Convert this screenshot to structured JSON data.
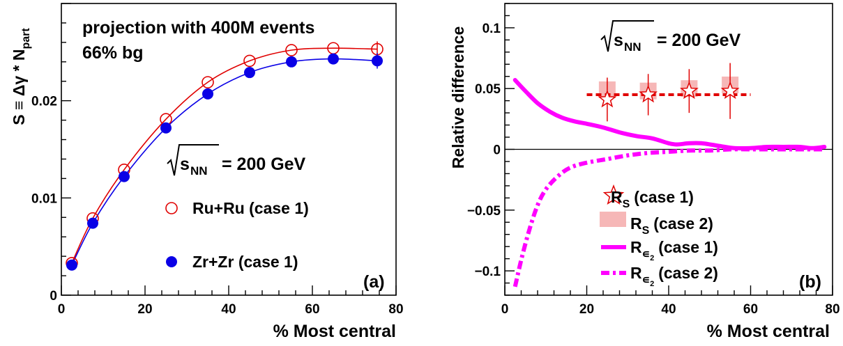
{
  "chart_data": [
    {
      "type": "scatter",
      "panel_label": "(a)",
      "annotation_lines": [
        "projection with 400M events",
        "66% bg"
      ],
      "energy_label": {
        "sqrt": "s",
        "sub": "NN",
        "value": "= 200 GeV"
      },
      "ylabel": {
        "main": "S ≡ Δγ * N",
        "sub": "part"
      },
      "xlabel": "% Most central",
      "xlim": [
        0,
        80
      ],
      "ylim": [
        0,
        0.03
      ],
      "xticks": [
        0,
        20,
        40,
        60,
        80
      ],
      "yticks": [
        0,
        0.01,
        0.02
      ],
      "ytick_labels": [
        "0",
        "0.01",
        "0.02"
      ],
      "series": [
        {
          "name": "Ru+Ru (case 1)",
          "marker": "open-circle",
          "color": "#e00000",
          "x": [
            2.5,
            7.5,
            15,
            25,
            35,
            45,
            55,
            65,
            75.5
          ],
          "y": [
            0.0033,
            0.0079,
            0.0129,
            0.0181,
            0.0219,
            0.0241,
            0.0252,
            0.0254,
            0.0253
          ],
          "err": [
            0,
            0,
            0,
            0,
            0,
            0,
            0,
            0,
            0.0008
          ],
          "fit": true
        },
        {
          "name": "Zr+Zr (case 1)",
          "marker": "filled-circle",
          "color": "#0a00e6",
          "x": [
            2.5,
            7.5,
            15,
            25,
            35,
            45,
            55,
            65,
            75.5
          ],
          "y": [
            0.0031,
            0.0074,
            0.0122,
            0.0172,
            0.0207,
            0.0229,
            0.024,
            0.0243,
            0.0241
          ],
          "err": [
            0,
            0,
            0,
            0,
            0,
            0,
            0,
            0,
            0.0008
          ],
          "fit": true
        }
      ]
    },
    {
      "type": "line",
      "panel_label": "(b)",
      "energy_label": {
        "sqrt": "s",
        "sub": "NN",
        "value": "= 200 GeV"
      },
      "ylabel": "Relative difference",
      "xlabel": "% Most central",
      "xlim": [
        0,
        80
      ],
      "ylim": [
        -0.12,
        0.12
      ],
      "xticks": [
        0,
        20,
        40,
        60,
        80
      ],
      "yticks": [
        -0.1,
        -0.05,
        0,
        0.05,
        0.1
      ],
      "ytick_labels": [
        "−0.1",
        "−0.05",
        "0",
        "0.05",
        "0.1"
      ],
      "rs_fit_level": 0.045,
      "rs_fit_range": [
        20,
        60
      ],
      "series": [
        {
          "name": "R",
          "sub": "S",
          "case": "(case 1)",
          "marker": "open-star",
          "color": "#e00000",
          "x": [
            25,
            35,
            45,
            55
          ],
          "y": [
            0.041,
            0.045,
            0.048,
            0.048
          ],
          "err": [
            0.018,
            0.017,
            0.018,
            0.023
          ]
        },
        {
          "name": "R",
          "sub": "S",
          "case": "(case 2)",
          "marker": "box",
          "color": "#f6b7b7",
          "x": [
            25,
            35,
            45,
            55
          ],
          "y": [
            0.049,
            0.048,
            0.05,
            0.053
          ]
        },
        {
          "name": "R",
          "sub": "∊",
          "subsub": "2",
          "case": "(case 1)",
          "style": "solid",
          "color": "#ff00ff",
          "x": [
            2.5,
            5,
            8,
            11,
            14,
            17,
            20,
            24,
            28,
            32,
            36,
            40,
            42,
            45,
            48,
            52,
            56,
            60,
            64,
            68,
            72,
            75,
            78
          ],
          "y": [
            0.057,
            0.048,
            0.038,
            0.031,
            0.026,
            0.023,
            0.021,
            0.018,
            0.014,
            0.011,
            0.009,
            0.005,
            0.004,
            0.005,
            0.005,
            0.003,
            0.001,
            0.001,
            0.002,
            0.002,
            0.002,
            0.001,
            0.002
          ]
        },
        {
          "name": "R",
          "sub": "∊",
          "subsub": "2",
          "case": "(case 2)",
          "style": "dashdot",
          "color": "#ff00ff",
          "x": [
            2.5,
            4,
            6,
            8,
            10,
            13,
            16,
            20,
            25,
            30,
            35,
            40,
            45,
            50,
            55,
            60,
            65,
            70,
            75,
            78
          ],
          "y": [
            -0.113,
            -0.091,
            -0.066,
            -0.046,
            -0.033,
            -0.022,
            -0.015,
            -0.011,
            -0.008,
            -0.005,
            -0.003,
            -0.002,
            -0.001,
            -0.001,
            0.0,
            0.0,
            0.0,
            0.0,
            0.0,
            0.0
          ]
        }
      ]
    }
  ]
}
